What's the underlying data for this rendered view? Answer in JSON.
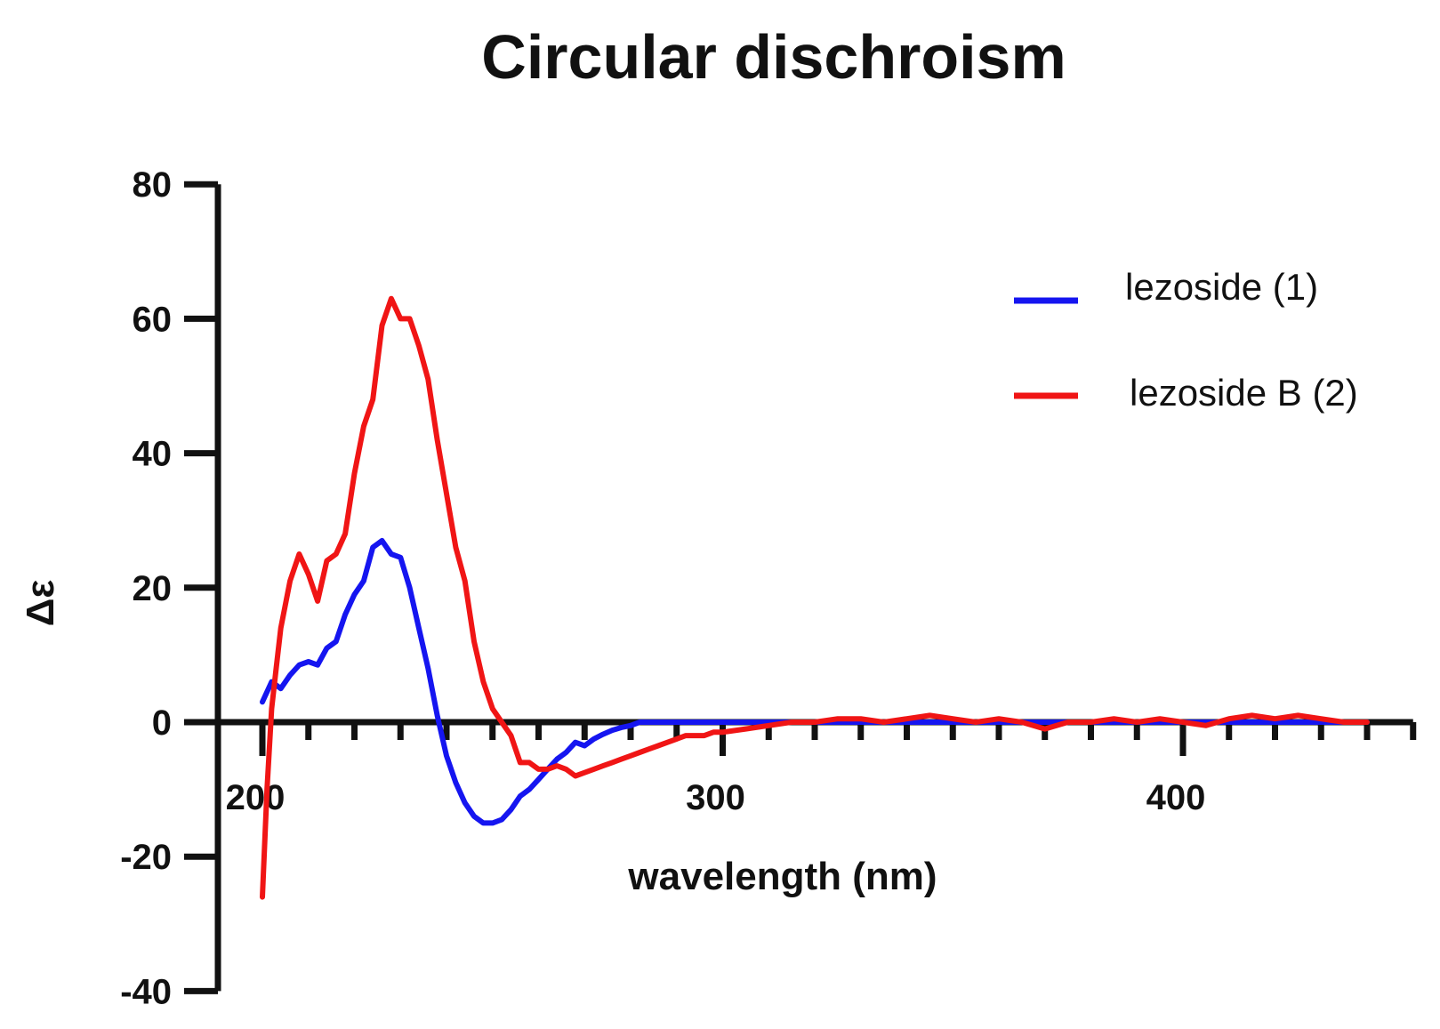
{
  "chart_data": {
    "type": "line",
    "title": "Circular dischroism",
    "xlabel": "wavelength (nm)",
    "ylabel": "Δε",
    "xlim": [
      190,
      450
    ],
    "ylim": [
      -40,
      80
    ],
    "x_ticks": [
      200,
      300,
      400
    ],
    "x_minor_step": 10,
    "y_ticks": [
      -40,
      -20,
      0,
      20,
      40,
      60,
      80
    ],
    "legend_position": "top-right",
    "grid": false,
    "series": [
      {
        "name": "lezoside (1)",
        "color": "#1515f0",
        "x": [
          200,
          202,
          204,
          206,
          208,
          210,
          212,
          214,
          216,
          218,
          220,
          222,
          224,
          226,
          228,
          230,
          232,
          234,
          236,
          238,
          240,
          242,
          244,
          246,
          248,
          250,
          252,
          254,
          256,
          258,
          260,
          262,
          264,
          266,
          268,
          270,
          272,
          274,
          276,
          278,
          280,
          282,
          284,
          286,
          288,
          290,
          292,
          294,
          296,
          298,
          300,
          305,
          310,
          315,
          320,
          325,
          330,
          335,
          340,
          345,
          350,
          355,
          360,
          365,
          370,
          375,
          380,
          385,
          390,
          395,
          400,
          405,
          410,
          415,
          420,
          425,
          430,
          435,
          440
        ],
        "y": [
          3,
          6,
          5,
          7,
          8.5,
          9,
          8.5,
          11,
          12,
          16,
          19,
          21,
          26,
          27,
          25,
          24.5,
          20,
          14,
          8,
          1,
          -5,
          -9,
          -12,
          -14,
          -15,
          -15,
          -14.5,
          -13,
          -11,
          -10,
          -8.5,
          -7,
          -5.5,
          -4.5,
          -3,
          -3.5,
          -2.5,
          -1.8,
          -1.2,
          -0.8,
          -0.5,
          0,
          0,
          0,
          0,
          0,
          0,
          0,
          0,
          0,
          0,
          0,
          0,
          0,
          0,
          0,
          0,
          0,
          0,
          0,
          0,
          0,
          0,
          0,
          0,
          0,
          0,
          0,
          0,
          0,
          0,
          0,
          0,
          0,
          0,
          0,
          0,
          0,
          0
        ]
      },
      {
        "name": "lezoside B (2)",
        "color": "#f01515",
        "x": [
          200,
          201,
          202,
          203,
          204,
          206,
          208,
          210,
          212,
          214,
          216,
          218,
          220,
          222,
          224,
          226,
          228,
          230,
          232,
          234,
          236,
          238,
          240,
          242,
          244,
          246,
          248,
          250,
          252,
          254,
          256,
          258,
          260,
          262,
          264,
          266,
          268,
          270,
          272,
          274,
          276,
          278,
          280,
          282,
          284,
          286,
          288,
          290,
          292,
          294,
          296,
          298,
          300,
          305,
          310,
          315,
          320,
          325,
          330,
          335,
          340,
          345,
          350,
          355,
          360,
          365,
          370,
          375,
          380,
          385,
          390,
          395,
          400,
          405,
          410,
          415,
          420,
          425,
          430,
          435,
          440
        ],
        "y": [
          -26,
          -10,
          2,
          8,
          14,
          21,
          25,
          22,
          18,
          24,
          25,
          28,
          37,
          44,
          48,
          59,
          63,
          60,
          60,
          56,
          51,
          42,
          34,
          26,
          21,
          12,
          6,
          2,
          0,
          -2,
          -6,
          -6,
          -7,
          -7,
          -6.5,
          -7,
          -8,
          -7.5,
          -7,
          -6.5,
          -6,
          -5.5,
          -5,
          -4.5,
          -4,
          -3.5,
          -3,
          -2.5,
          -2,
          -2,
          -2,
          -1.5,
          -1.5,
          -1,
          -0.5,
          0,
          0,
          0.5,
          0.5,
          0,
          0.5,
          1,
          0.5,
          0,
          0.5,
          0,
          -1,
          0,
          0,
          0.5,
          0,
          0.5,
          0,
          -0.5,
          0.5,
          1,
          0.5,
          1,
          0.5,
          0,
          0
        ]
      }
    ]
  }
}
